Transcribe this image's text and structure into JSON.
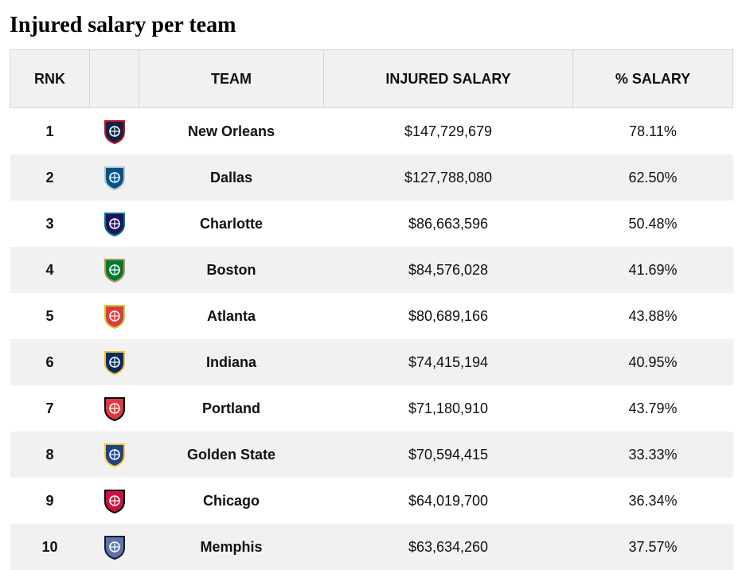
{
  "title": "Injured salary per team",
  "columns": {
    "rank": "RNK",
    "logo": "",
    "team": "TEAM",
    "salary": "INJURED SALARY",
    "pct": "% SALARY"
  },
  "rows": [
    {
      "rank": "1",
      "team": "New Orleans",
      "salary": "$147,729,679",
      "pct": "78.11%",
      "logo_icon": "pelicans-logo-icon",
      "color": "#0c2340",
      "accent": "#c8102e"
    },
    {
      "rank": "2",
      "team": "Dallas",
      "salary": "$127,788,080",
      "pct": "62.50%",
      "logo_icon": "mavericks-logo-icon",
      "color": "#00538c",
      "accent": "#b8c4ca"
    },
    {
      "rank": "3",
      "team": "Charlotte",
      "salary": "$86,663,596",
      "pct": "50.48%",
      "logo_icon": "hornets-logo-icon",
      "color": "#1d1160",
      "accent": "#00788c"
    },
    {
      "rank": "4",
      "team": "Boston",
      "salary": "$84,576,028",
      "pct": "41.69%",
      "logo_icon": "celtics-logo-icon",
      "color": "#007a33",
      "accent": "#ba9653"
    },
    {
      "rank": "5",
      "team": "Atlanta",
      "salary": "$80,689,166",
      "pct": "43.88%",
      "logo_icon": "hawks-logo-icon",
      "color": "#e03a3e",
      "accent": "#c1d32f"
    },
    {
      "rank": "6",
      "team": "Indiana",
      "salary": "$74,415,194",
      "pct": "40.95%",
      "logo_icon": "pacers-logo-icon",
      "color": "#002d62",
      "accent": "#fdbb30"
    },
    {
      "rank": "7",
      "team": "Portland",
      "salary": "$71,180,910",
      "pct": "43.79%",
      "logo_icon": "trail-blazers-logo-icon",
      "color": "#e03a3e",
      "accent": "#000000"
    },
    {
      "rank": "8",
      "team": "Golden State",
      "salary": "$70,594,415",
      "pct": "33.33%",
      "logo_icon": "warriors-logo-icon",
      "color": "#1d428a",
      "accent": "#ffc72c"
    },
    {
      "rank": "9",
      "team": "Chicago",
      "salary": "$64,019,700",
      "pct": "36.34%",
      "logo_icon": "bulls-logo-icon",
      "color": "#ce1141",
      "accent": "#000000"
    },
    {
      "rank": "10",
      "team": "Memphis",
      "salary": "$63,634,260",
      "pct": "37.57%",
      "logo_icon": "grizzlies-logo-icon",
      "color": "#5d76a9",
      "accent": "#12173f"
    }
  ]
}
